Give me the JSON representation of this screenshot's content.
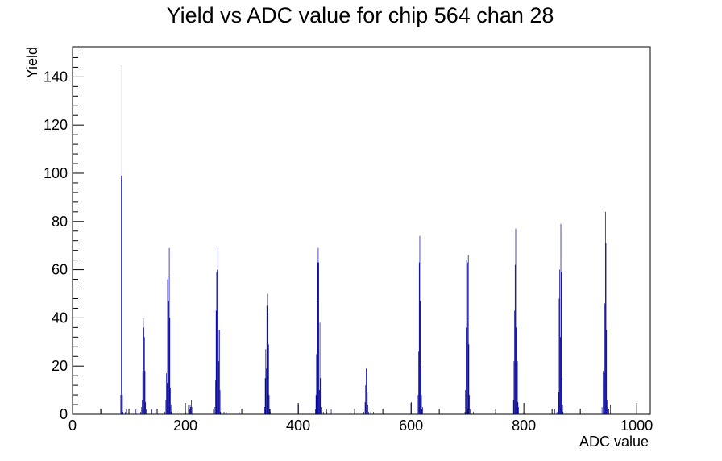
{
  "chart_data": {
    "type": "bar",
    "title": "Yield vs ADC value for chip 564 chan 28",
    "xlabel": "ADC value",
    "ylabel": "Yield",
    "xlim": [
      0,
      1024
    ],
    "ylim": [
      0,
      152.5
    ],
    "bin_width": 1,
    "x_ticks": [
      0,
      200,
      400,
      600,
      800,
      1000
    ],
    "y_ticks": [
      0,
      20,
      40,
      60,
      80,
      100,
      120,
      140
    ],
    "line_color": "#000099",
    "grid": false,
    "legend": "none",
    "bins": [
      [
        50,
        2
      ],
      [
        85,
        8
      ],
      [
        86,
        99
      ],
      [
        87,
        145
      ],
      [
        88,
        8
      ],
      [
        89,
        1
      ],
      [
        93,
        1
      ],
      [
        95,
        2
      ],
      [
        112,
        2
      ],
      [
        120,
        1
      ],
      [
        122,
        3
      ],
      [
        123,
        6
      ],
      [
        124,
        18
      ],
      [
        125,
        40
      ],
      [
        126,
        36
      ],
      [
        127,
        32
      ],
      [
        128,
        18
      ],
      [
        129,
        5
      ],
      [
        130,
        2
      ],
      [
        140,
        2
      ],
      [
        147,
        1
      ],
      [
        163,
        1
      ],
      [
        165,
        6
      ],
      [
        166,
        17
      ],
      [
        167,
        13
      ],
      [
        168,
        56
      ],
      [
        169,
        57
      ],
      [
        170,
        47
      ],
      [
        171,
        69
      ],
      [
        172,
        40
      ],
      [
        173,
        11
      ],
      [
        174,
        4
      ],
      [
        175,
        1
      ],
      [
        190,
        1
      ],
      [
        200,
        1
      ],
      [
        205,
        4
      ],
      [
        207,
        2
      ],
      [
        208,
        4
      ],
      [
        209,
        3
      ],
      [
        210,
        6
      ],
      [
        211,
        3
      ],
      [
        213,
        1
      ],
      [
        250,
        2
      ],
      [
        252,
        3
      ],
      [
        253,
        14
      ],
      [
        254,
        43
      ],
      [
        255,
        59
      ],
      [
        256,
        60
      ],
      [
        257,
        69
      ],
      [
        258,
        35
      ],
      [
        259,
        22
      ],
      [
        260,
        35
      ],
      [
        261,
        10
      ],
      [
        262,
        1
      ],
      [
        268,
        1
      ],
      [
        272,
        1
      ],
      [
        295,
        1
      ],
      [
        340,
        3
      ],
      [
        341,
        15
      ],
      [
        342,
        27
      ],
      [
        343,
        19
      ],
      [
        344,
        45
      ],
      [
        345,
        50
      ],
      [
        346,
        43
      ],
      [
        347,
        29
      ],
      [
        348,
        8
      ],
      [
        349,
        2
      ],
      [
        350,
        1
      ],
      [
        400,
        4
      ],
      [
        430,
        2
      ],
      [
        431,
        8
      ],
      [
        432,
        25
      ],
      [
        433,
        47
      ],
      [
        434,
        63
      ],
      [
        435,
        69
      ],
      [
        436,
        63
      ],
      [
        437,
        10
      ],
      [
        438,
        38
      ],
      [
        439,
        15
      ],
      [
        440,
        3
      ],
      [
        444,
        1
      ],
      [
        450,
        1
      ],
      [
        458,
        2
      ],
      [
        516,
        1
      ],
      [
        518,
        5
      ],
      [
        519,
        12
      ],
      [
        520,
        19
      ],
      [
        521,
        19
      ],
      [
        522,
        9
      ],
      [
        523,
        4
      ],
      [
        524,
        1
      ],
      [
        528,
        1
      ],
      [
        533,
        1
      ],
      [
        600,
        5
      ],
      [
        610,
        1
      ],
      [
        612,
        8
      ],
      [
        613,
        26
      ],
      [
        614,
        63
      ],
      [
        615,
        74
      ],
      [
        616,
        47
      ],
      [
        617,
        20
      ],
      [
        618,
        8
      ],
      [
        619,
        2
      ],
      [
        620,
        3
      ],
      [
        695,
        1
      ],
      [
        696,
        10
      ],
      [
        697,
        36
      ],
      [
        698,
        64
      ],
      [
        699,
        40
      ],
      [
        700,
        63
      ],
      [
        701,
        66
      ],
      [
        702,
        29
      ],
      [
        703,
        8
      ],
      [
        704,
        2
      ],
      [
        710,
        1
      ],
      [
        750,
        1
      ],
      [
        781,
        6
      ],
      [
        782,
        22
      ],
      [
        783,
        43
      ],
      [
        784,
        62
      ],
      [
        785,
        77
      ],
      [
        786,
        36
      ],
      [
        787,
        38
      ],
      [
        788,
        22
      ],
      [
        789,
        5
      ],
      [
        790,
        3
      ],
      [
        799,
        1
      ],
      [
        854,
        2
      ],
      [
        858,
        1
      ],
      [
        860,
        3
      ],
      [
        861,
        9
      ],
      [
        862,
        48
      ],
      [
        863,
        60
      ],
      [
        864,
        32
      ],
      [
        865,
        79
      ],
      [
        866,
        59
      ],
      [
        867,
        15
      ],
      [
        868,
        4
      ],
      [
        869,
        1
      ],
      [
        938,
        3
      ],
      [
        940,
        18
      ],
      [
        941,
        14
      ],
      [
        942,
        17
      ],
      [
        943,
        46
      ],
      [
        944,
        84
      ],
      [
        945,
        71
      ],
      [
        946,
        35
      ],
      [
        947,
        6
      ],
      [
        948,
        3
      ],
      [
        949,
        2
      ],
      [
        953,
        4
      ]
    ]
  }
}
